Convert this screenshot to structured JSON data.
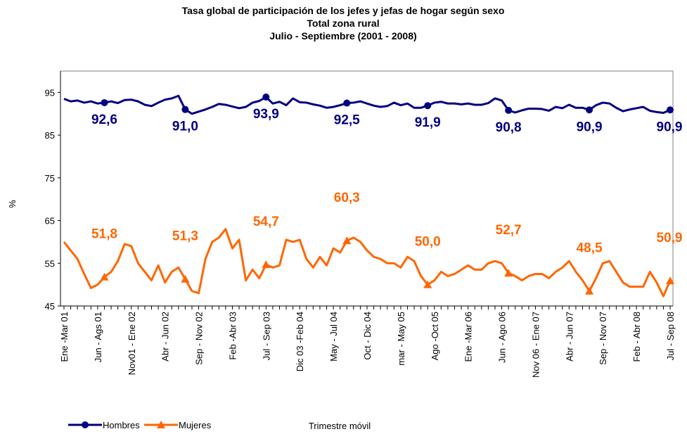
{
  "chart_data": {
    "type": "line",
    "title": [
      "Tasa global de participación de los jefes y jefas de hogar según sexo",
      "Total zona rural",
      "Julio - Septiembre (2001 - 2008)"
    ],
    "y_label": "%",
    "x_label": "Trimestre móvil",
    "ylim": [
      45,
      100
    ],
    "yticks": [
      45,
      55,
      65,
      75,
      85,
      95
    ],
    "legend": "bottom-left",
    "categories": [
      "Ene -Mar 01",
      null,
      null,
      null,
      null,
      "Jun - Ags 01",
      null,
      null,
      null,
      null,
      "Nov01 - Ene 02",
      null,
      null,
      null,
      null,
      "Abr - Jun 02",
      null,
      null,
      null,
      null,
      "Sep - Nov 02",
      null,
      null,
      null,
      null,
      "Feb -Abr 03",
      null,
      null,
      null,
      null,
      "Jul - Sep 03",
      null,
      null,
      null,
      null,
      "Dic 03 -Feb 04",
      null,
      null,
      null,
      null,
      "May - Jul 04",
      null,
      null,
      null,
      null,
      "Oct - Dic 04",
      null,
      null,
      null,
      null,
      "mar - May 05",
      null,
      null,
      null,
      null,
      "Ago -Oct 05",
      null,
      null,
      null,
      null,
      "Ene -Mar 06",
      null,
      null,
      null,
      null,
      "Jun - Ago 06",
      null,
      null,
      null,
      null,
      "Nov 06 - Ene 07",
      null,
      null,
      null,
      null,
      "Abr - Jun 07",
      null,
      null,
      null,
      null,
      "Sep - Nov 07",
      null,
      null,
      null,
      null,
      "Feb - Abr 08",
      null,
      null,
      null,
      null,
      "Jul - Sep 08"
    ],
    "series": [
      {
        "name": "Hombres",
        "color": "#000080",
        "marker": "circle",
        "values": [
          93.5,
          92.9,
          93.1,
          92.6,
          92.9,
          92.4,
          92.6,
          92.9,
          92.5,
          93.2,
          93.3,
          92.9,
          92.1,
          91.8,
          92.6,
          93.3,
          93.6,
          94.2,
          91.0,
          90.0,
          90.5,
          91.0,
          91.6,
          92.3,
          92.1,
          91.7,
          91.3,
          91.6,
          92.6,
          93.0,
          93.9,
          92.4,
          92.8,
          92.0,
          93.6,
          92.7,
          92.6,
          92.2,
          91.9,
          91.4,
          91.6,
          92.0,
          92.5,
          92.6,
          92.9,
          92.4,
          91.9,
          91.6,
          91.8,
          92.6,
          92.0,
          92.4,
          91.4,
          91.4,
          91.9,
          92.6,
          92.8,
          92.4,
          92.4,
          92.2,
          92.4,
          92.1,
          92.1,
          92.5,
          93.6,
          93.1,
          90.8,
          90.3,
          90.8,
          91.2,
          91.2,
          91.1,
          90.7,
          91.6,
          91.3,
          92.1,
          91.4,
          91.4,
          90.9,
          92.0,
          92.6,
          92.4,
          91.4,
          90.6,
          91.0,
          91.3,
          91.6,
          90.7,
          90.4,
          90.2,
          90.9
        ],
        "value_labels": [
          null,
          null,
          null,
          null,
          null,
          null,
          "92,6",
          null,
          null,
          null,
          null,
          null,
          null,
          null,
          null,
          null,
          null,
          null,
          "91,0",
          null,
          null,
          null,
          null,
          null,
          null,
          null,
          null,
          null,
          null,
          null,
          "93,9",
          null,
          null,
          null,
          null,
          null,
          null,
          null,
          null,
          null,
          null,
          null,
          "92,5",
          null,
          null,
          null,
          null,
          null,
          null,
          null,
          null,
          null,
          null,
          null,
          "91,9",
          null,
          null,
          null,
          null,
          null,
          null,
          null,
          null,
          null,
          null,
          null,
          "90,8",
          null,
          null,
          null,
          null,
          null,
          null,
          null,
          null,
          null,
          null,
          null,
          "90,9",
          null,
          null,
          null,
          null,
          null,
          null,
          null,
          null,
          null,
          null,
          null,
          "90,9"
        ]
      },
      {
        "name": "Mujeres",
        "color": "#FF6600",
        "marker": "triangle",
        "values": [
          60.0,
          58.0,
          56.0,
          52.5,
          49.2,
          50.0,
          51.8,
          53.0,
          55.5,
          59.5,
          59.0,
          55.0,
          53.0,
          51.0,
          54.5,
          50.5,
          53.0,
          54.0,
          51.3,
          48.5,
          48.0,
          56.0,
          60.0,
          61.0,
          63.0,
          58.5,
          60.5,
          51.0,
          53.5,
          51.5,
          54.7,
          54.0,
          54.5,
          60.5,
          60.0,
          60.5,
          56.0,
          54.0,
          56.5,
          54.5,
          58.5,
          57.5,
          60.3,
          61.0,
          60.0,
          58.0,
          56.5,
          56.0,
          55.0,
          55.0,
          54.0,
          56.5,
          55.5,
          52.0,
          50.0,
          51.0,
          53.0,
          52.0,
          52.5,
          53.5,
          54.5,
          53.5,
          53.5,
          55.0,
          55.5,
          55.0,
          52.7,
          52.0,
          51.0,
          52.0,
          52.5,
          52.5,
          51.5,
          53.0,
          54.0,
          55.5,
          53.0,
          51.0,
          48.5,
          51.5,
          55.0,
          55.5,
          53.0,
          50.5,
          49.5,
          49.5,
          49.5,
          53.0,
          50.5,
          47.3,
          50.9
        ],
        "value_labels": [
          null,
          null,
          null,
          null,
          null,
          null,
          "51,8",
          null,
          null,
          null,
          null,
          null,
          null,
          null,
          null,
          null,
          null,
          null,
          "51,3",
          null,
          null,
          null,
          null,
          null,
          null,
          null,
          null,
          null,
          null,
          null,
          "54,7",
          null,
          null,
          null,
          null,
          null,
          null,
          null,
          null,
          null,
          null,
          null,
          "60,3",
          null,
          null,
          null,
          null,
          null,
          null,
          null,
          null,
          null,
          null,
          null,
          "50,0",
          null,
          null,
          null,
          null,
          null,
          null,
          null,
          null,
          null,
          null,
          null,
          "52,7",
          null,
          null,
          null,
          null,
          null,
          null,
          null,
          null,
          null,
          null,
          null,
          "48,5",
          null,
          null,
          null,
          null,
          null,
          null,
          null,
          null,
          null,
          null,
          null,
          "50,9"
        ]
      }
    ]
  }
}
